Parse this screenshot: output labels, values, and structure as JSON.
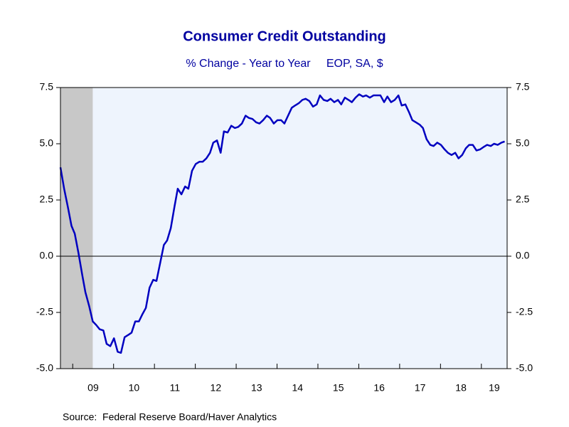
{
  "chart_data": {
    "type": "line",
    "title": "Consumer Credit Outstanding",
    "subtitle": "% Change - Year to Year     EOP, SA, $",
    "source": "Source:  Federal Reserve Board/Haver Analytics",
    "color": "#0000c0",
    "shaded_x": [
      2008.7,
      2009.49
    ],
    "xlim": [
      2008.7,
      2019.63
    ],
    "xticks": [
      {
        "value": 2009,
        "label": "09"
      },
      {
        "value": 2010,
        "label": "10"
      },
      {
        "value": 2011,
        "label": "11"
      },
      {
        "value": 2012,
        "label": "12"
      },
      {
        "value": 2013,
        "label": "13"
      },
      {
        "value": 2014,
        "label": "14"
      },
      {
        "value": 2015,
        "label": "15"
      },
      {
        "value": 2016,
        "label": "16"
      },
      {
        "value": 2017,
        "label": "17"
      },
      {
        "value": 2018,
        "label": "18"
      },
      {
        "value": 2019,
        "label": "19"
      }
    ],
    "ylim": [
      -5,
      7.5
    ],
    "yticks": [
      {
        "value": -5,
        "label": "-5.0"
      },
      {
        "value": -2.5,
        "label": "-2.5"
      },
      {
        "value": 0,
        "label": "0.0"
      },
      2.5,
      {
        "value": 5,
        "label": "5.0"
      },
      7.5
    ],
    "y2lim": [
      -5,
      7.5
    ],
    "y2ticks": [
      {
        "value": -5,
        "label": "-5.0"
      },
      {
        "value": -2.5,
        "label": "-2.5"
      },
      {
        "value": 0,
        "label": "0.0"
      },
      2.5,
      {
        "value": 5,
        "label": "5.0"
      },
      7.5
    ],
    "x": [
      2008.7,
      2008.79,
      2008.88,
      2008.97,
      2009.05,
      2009.14,
      2009.23,
      2009.31,
      2009.4,
      2009.49,
      2009.57,
      2009.66,
      2009.75,
      2009.83,
      2009.92,
      2010.01,
      2010.1,
      2010.18,
      2010.27,
      2010.36,
      2010.44,
      2010.53,
      2010.62,
      2010.7,
      2010.79,
      2010.88,
      2010.97,
      2011.05,
      2011.14,
      2011.23,
      2011.31,
      2011.4,
      2011.49,
      2011.57,
      2011.66,
      2011.75,
      2011.83,
      2011.92,
      2012.01,
      2012.1,
      2012.18,
      2012.27,
      2012.36,
      2012.44,
      2012.53,
      2012.62,
      2012.7,
      2012.79,
      2012.88,
      2012.97,
      2013.05,
      2013.14,
      2013.23,
      2013.31,
      2013.4,
      2013.49,
      2013.57,
      2013.66,
      2013.75,
      2013.83,
      2013.92,
      2014.01,
      2014.1,
      2014.18,
      2014.27,
      2014.36,
      2014.44,
      2014.53,
      2014.62,
      2014.7,
      2014.79,
      2014.88,
      2014.97,
      2015.05,
      2015.14,
      2015.23,
      2015.31,
      2015.4,
      2015.49,
      2015.57,
      2015.66,
      2015.75,
      2015.83,
      2015.92,
      2016.01,
      2016.1,
      2016.18,
      2016.27,
      2016.36,
      2016.44,
      2016.53,
      2016.62,
      2016.7,
      2016.79,
      2016.88,
      2016.97,
      2017.05,
      2017.14,
      2017.23,
      2017.31,
      2017.4,
      2017.49,
      2017.57,
      2017.66,
      2017.75,
      2017.83,
      2017.92,
      2018.01,
      2018.1,
      2018.18,
      2018.27,
      2018.36,
      2018.44,
      2018.53,
      2018.62,
      2018.7,
      2018.79,
      2018.88,
      2018.97,
      2019.05,
      2019.14,
      2019.23,
      2019.31,
      2019.4,
      2019.49,
      2019.57
    ],
    "values": [
      3.95,
      3.0,
      2.2,
      1.35,
      1.0,
      0.15,
      -0.8,
      -1.6,
      -2.2,
      -2.9,
      -3.05,
      -3.25,
      -3.3,
      -3.9,
      -4.0,
      -3.65,
      -4.25,
      -4.3,
      -3.6,
      -3.5,
      -3.4,
      -2.9,
      -2.9,
      -2.6,
      -2.3,
      -1.4,
      -1.05,
      -1.1,
      -0.3,
      0.5,
      0.7,
      1.25,
      2.2,
      3.0,
      2.75,
      3.1,
      3.0,
      3.8,
      4.1,
      4.2,
      4.2,
      4.35,
      4.6,
      5.05,
      5.15,
      4.6,
      5.55,
      5.5,
      5.8,
      5.7,
      5.75,
      5.9,
      6.25,
      6.15,
      6.1,
      5.95,
      5.9,
      6.05,
      6.25,
      6.15,
      5.9,
      6.05,
      6.05,
      5.9,
      6.25,
      6.6,
      6.7,
      6.8,
      6.95,
      7.0,
      6.9,
      6.65,
      6.75,
      7.15,
      6.95,
      6.9,
      7.0,
      6.85,
      6.95,
      6.75,
      7.05,
      6.95,
      6.85,
      7.05,
      7.2,
      7.1,
      7.15,
      7.05,
      7.15,
      7.15,
      7.15,
      6.85,
      7.1,
      6.85,
      6.95,
      7.15,
      6.7,
      6.75,
      6.4,
      6.05,
      5.95,
      5.85,
      5.7,
      5.2,
      4.95,
      4.9,
      5.05,
      4.95,
      4.75,
      4.6,
      4.5,
      4.6,
      4.35,
      4.5,
      4.8,
      4.95,
      4.95,
      4.7,
      4.75,
      4.85,
      4.95,
      4.9,
      5.0,
      4.95,
      5.05,
      5.1
    ]
  }
}
